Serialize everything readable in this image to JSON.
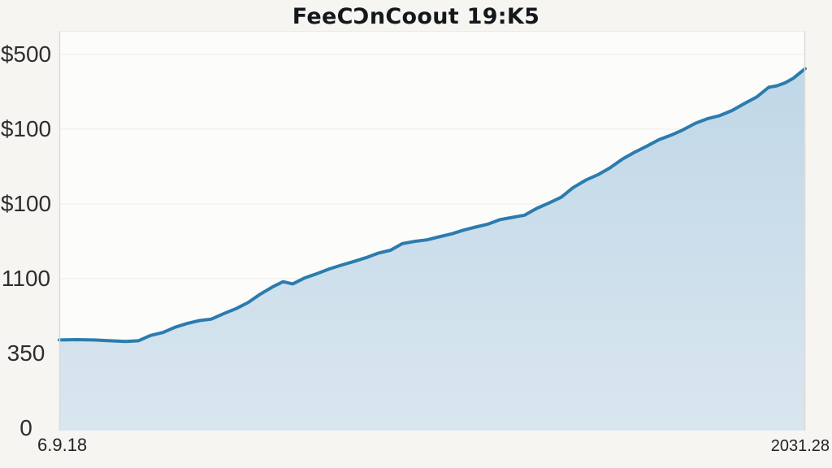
{
  "page": {
    "background": "#f7f5f2"
  },
  "chart_data": {
    "type": "area",
    "title": "FeeCƆnCoout 19:K5",
    "xlabel": "",
    "ylabel": "",
    "legend": "none",
    "grid": true,
    "ylim": [
      0,
      500
    ],
    "xlim": [
      0,
      100
    ],
    "y_ticks": [
      "$500",
      "$100",
      "$100",
      "1100",
      "350",
      "0"
    ],
    "x_ticks": [
      "6.9.18",
      "2031.28"
    ],
    "colors": {
      "line": "#2b7cae",
      "fill_top": "#c0d7e7",
      "fill_bottom": "#d9e6ef",
      "gridline": "#ecebe8",
      "axis_border": "#dcdad7",
      "plot_bg": "#fcfcfb",
      "label": "#2e2e2e",
      "title": "#14181d"
    },
    "series": [
      {
        "name": "value",
        "points": [
          [
            0,
            118
          ],
          [
            2.4,
            118.5
          ],
          [
            4.6,
            118
          ],
          [
            6.8,
            117
          ],
          [
            8.9,
            116
          ],
          [
            10.6,
            117
          ],
          [
            12.2,
            124
          ],
          [
            13.9,
            128
          ],
          [
            15.5,
            135
          ],
          [
            17.1,
            140
          ],
          [
            18.8,
            144
          ],
          [
            20.4,
            146
          ],
          [
            22,
            153
          ],
          [
            23.7,
            160
          ],
          [
            25.3,
            168
          ],
          [
            26.9,
            179
          ],
          [
            28.6,
            189
          ],
          [
            30,
            196
          ],
          [
            31.3,
            193
          ],
          [
            32.9,
            201
          ],
          [
            34.6,
            207
          ],
          [
            36.2,
            213
          ],
          [
            37.8,
            218
          ],
          [
            39.5,
            223
          ],
          [
            41.1,
            228
          ],
          [
            42.7,
            234
          ],
          [
            44.4,
            238
          ],
          [
            46,
            247
          ],
          [
            47.7,
            250
          ],
          [
            49.3,
            252
          ],
          [
            50.9,
            256
          ],
          [
            52.6,
            260
          ],
          [
            54.2,
            265
          ],
          [
            55.8,
            269
          ],
          [
            57.5,
            273
          ],
          [
            59.1,
            279
          ],
          [
            60.7,
            282
          ],
          [
            62.4,
            285
          ],
          [
            64,
            294
          ],
          [
            65.6,
            301
          ],
          [
            67.3,
            309
          ],
          [
            68.9,
            322
          ],
          [
            70.6,
            332
          ],
          [
            72.2,
            339
          ],
          [
            73.8,
            348
          ],
          [
            75.5,
            360
          ],
          [
            77.1,
            369
          ],
          [
            78.7,
            377
          ],
          [
            80.4,
            386
          ],
          [
            82,
            392
          ],
          [
            83.6,
            399
          ],
          [
            85.3,
            408
          ],
          [
            86.9,
            414
          ],
          [
            88.5,
            418
          ],
          [
            90.2,
            425
          ],
          [
            91.8,
            434
          ],
          [
            93.5,
            443
          ],
          [
            95.1,
            456
          ],
          [
            96.2,
            458
          ],
          [
            97.3,
            462
          ],
          [
            98.4,
            468
          ],
          [
            99.5,
            477
          ],
          [
            100,
            481
          ]
        ]
      }
    ]
  }
}
